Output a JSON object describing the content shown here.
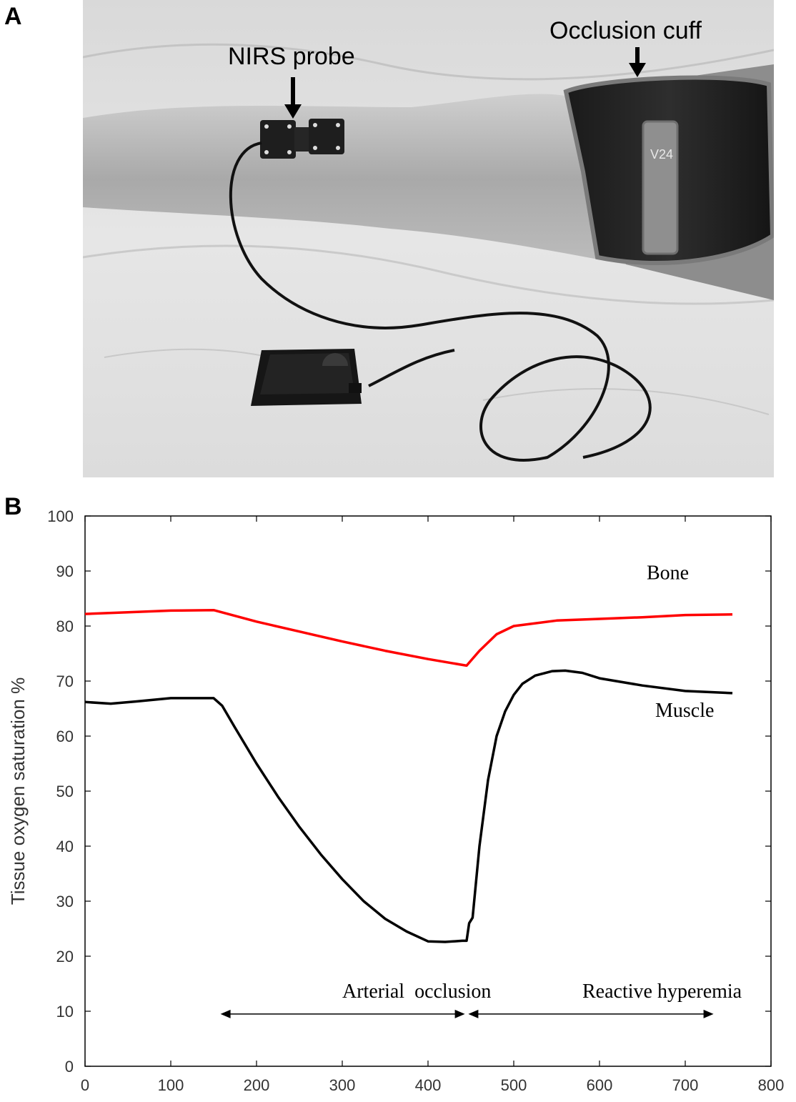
{
  "panels": {
    "a": {
      "label": "A",
      "probe_label": "NIRS probe",
      "cuff_label": "Occlusion cuff",
      "cuff_mark": "V24"
    },
    "b": {
      "label": "B"
    }
  },
  "chart_data": {
    "type": "line",
    "title": "",
    "xlabel": "",
    "ylabel": "Tissue oxygen saturation %",
    "xlim": [
      0,
      800
    ],
    "ylim": [
      0,
      100
    ],
    "xticks": [
      0,
      100,
      200,
      300,
      400,
      500,
      600,
      700,
      800
    ],
    "yticks": [
      0,
      10,
      20,
      30,
      40,
      50,
      60,
      70,
      80,
      90,
      100
    ],
    "grid": false,
    "series": [
      {
        "name": "Bone",
        "color": "#ff0000",
        "x": [
          0,
          50,
          100,
          150,
          200,
          250,
          300,
          350,
          400,
          445,
          460,
          480,
          500,
          550,
          600,
          650,
          700,
          755
        ],
        "y": [
          82.2,
          82.5,
          82.8,
          82.9,
          80.8,
          79.0,
          77.2,
          75.5,
          74.0,
          72.8,
          75.5,
          78.5,
          80.0,
          81.0,
          81.3,
          81.6,
          82.0,
          82.1
        ]
      },
      {
        "name": "Muscle",
        "color": "#000000",
        "x": [
          0,
          30,
          60,
          100,
          150,
          160,
          175,
          200,
          225,
          250,
          275,
          300,
          325,
          350,
          375,
          400,
          420,
          440,
          445,
          448,
          452,
          460,
          470,
          480,
          490,
          500,
          510,
          525,
          545,
          560,
          580,
          600,
          650,
          700,
          755
        ],
        "y": [
          66.2,
          65.9,
          66.3,
          66.9,
          66.9,
          65.5,
          61.5,
          55.0,
          49.0,
          43.5,
          38.5,
          34.0,
          30.0,
          26.8,
          24.5,
          22.7,
          22.6,
          22.8,
          22.8,
          26.0,
          27.0,
          40.0,
          52.0,
          60.0,
          64.5,
          67.5,
          69.5,
          71.0,
          71.8,
          71.9,
          71.5,
          70.5,
          69.2,
          68.2,
          67.8
        ]
      }
    ],
    "annotations": [
      {
        "text": "Bone",
        "x": 655,
        "y": 88.5
      },
      {
        "text": "Muscle",
        "x": 665,
        "y": 63.5
      },
      {
        "text": "Arterial  occlusion",
        "x": 300,
        "y": 12.5
      },
      {
        "text": "Reactive hyperemia",
        "x": 580,
        "y": 12.5
      }
    ],
    "arrows": [
      {
        "from": 158,
        "to": 443,
        "y": 9.5
      },
      {
        "from": 447,
        "to": 733,
        "y": 9.5
      }
    ]
  }
}
